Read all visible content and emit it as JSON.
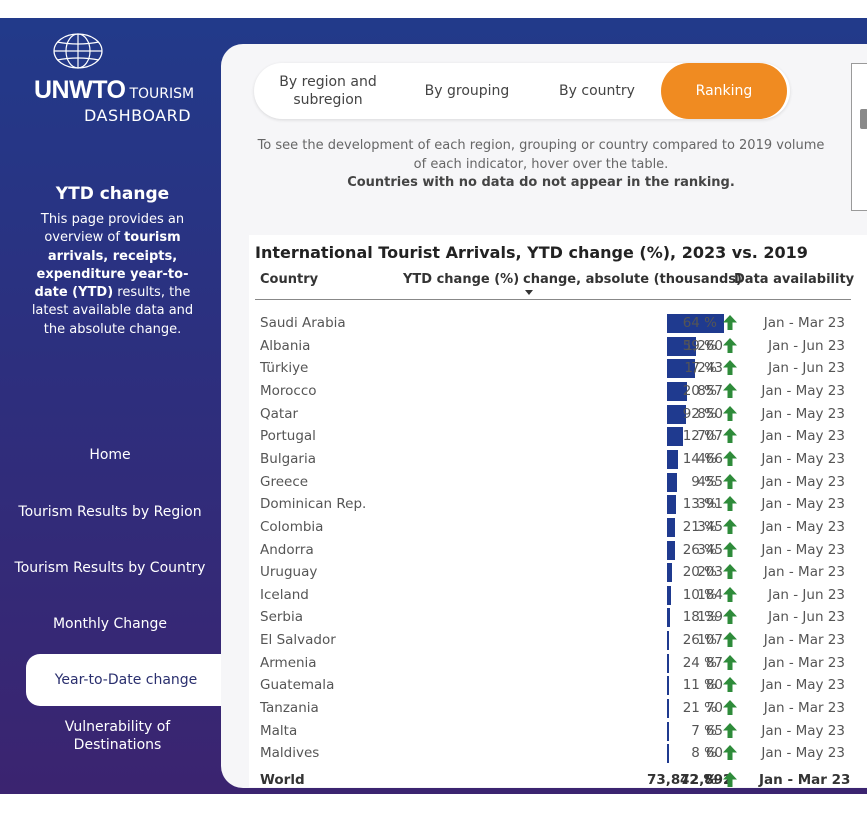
{
  "brand": {
    "logo_main": "UNWTO",
    "logo_sub": "TOURISM",
    "logo_dash": "DASHBOARD"
  },
  "sidebar": {
    "section_title": "YTD change",
    "description_parts": [
      "This page provides an overview of ",
      "tourism arrivals, receipts, expenditure year-to-date (YTD)",
      " results, the latest available data and the absolute change."
    ],
    "nav": [
      {
        "label": "Home"
      },
      {
        "label": "Tourism Results by Region"
      },
      {
        "label": "Tourism Results by Country"
      },
      {
        "label": "Monthly Change"
      },
      {
        "label": "Year-to-Date change",
        "active": true
      },
      {
        "label": "Vulnerability of Destinations"
      }
    ]
  },
  "tabs": [
    {
      "label": "By region and subregion"
    },
    {
      "label": "By grouping"
    },
    {
      "label": "By country"
    },
    {
      "label": "Ranking",
      "active": true
    }
  ],
  "info": {
    "line": "To see the development of each region, grouping or country compared to 2019 volume of each indicator, hover over the table.",
    "bold_line": "Countries with no data do not appear in the ranking."
  },
  "table": {
    "title": "International Tourist Arrivals, YTD change (%), 2023 vs. 2019",
    "headers": {
      "country": "Country",
      "ytd": "YTD change (%)",
      "abs": "change, absolute (thousands)",
      "avail": "Data availability"
    },
    "rows": [
      {
        "country": "Saudi Arabia",
        "ytd": "64 %",
        "abs": "",
        "abs_value": 2500,
        "avail": "Jan - Mar 23"
      },
      {
        "country": "Albania",
        "ytd": "59 %",
        "abs": "1,260",
        "abs_value": 1260,
        "avail": "Jan - Jun 23"
      },
      {
        "country": "Türkiye",
        "ytd": "7 %",
        "abs": "1,243",
        "abs_value": 1243,
        "avail": "Jan - Jun 23"
      },
      {
        "country": "Morocco",
        "ytd": "20 %",
        "abs": "857",
        "abs_value": 857,
        "avail": "Jan - May 23"
      },
      {
        "country": "Qatar",
        "ytd": "92 %",
        "abs": "850",
        "abs_value": 850,
        "avail": "Jan - May 23"
      },
      {
        "country": "Portugal",
        "ytd": "12 %",
        "abs": "707",
        "abs_value": 707,
        "avail": "Jan - May 23"
      },
      {
        "country": "Bulgaria",
        "ytd": "14 %",
        "abs": "466",
        "abs_value": 466,
        "avail": "Jan - May 23"
      },
      {
        "country": "Greece",
        "ytd": "9 %",
        "abs": "455",
        "abs_value": 455,
        "avail": "Jan - May 23"
      },
      {
        "country": "Dominican Rep.",
        "ytd": "13 %",
        "abs": "391",
        "abs_value": 391,
        "avail": "Jan - May 23"
      },
      {
        "country": "Colombia",
        "ytd": "21 %",
        "abs": "345",
        "abs_value": 345,
        "avail": "Jan - May 23"
      },
      {
        "country": "Andorra",
        "ytd": "26 %",
        "abs": "345",
        "abs_value": 345,
        "avail": "Jan - May 23"
      },
      {
        "country": "Uruguay",
        "ytd": "20 %",
        "abs": "203",
        "abs_value": 203,
        "avail": "Jan - Mar 23"
      },
      {
        "country": "Iceland",
        "ytd": "10 %",
        "abs": "184",
        "abs_value": 184,
        "avail": "Jan - Jun 23"
      },
      {
        "country": "Serbia",
        "ytd": "18 %",
        "abs": "139",
        "abs_value": 139,
        "avail": "Jan - Jun 23"
      },
      {
        "country": "El Salvador",
        "ytd": "26 %",
        "abs": "107",
        "abs_value": 107,
        "avail": "Jan - Mar 23"
      },
      {
        "country": "Armenia",
        "ytd": "24 %",
        "abs": "87",
        "abs_value": 87,
        "avail": "Jan - Mar 23"
      },
      {
        "country": "Guatemala",
        "ytd": "11 %",
        "abs": "80",
        "abs_value": 80,
        "avail": "Jan - May 23"
      },
      {
        "country": "Tanzania",
        "ytd": "21 %",
        "abs": "70",
        "abs_value": 70,
        "avail": "Jan - Mar 23"
      },
      {
        "country": "Malta",
        "ytd": "7 %",
        "abs": "65",
        "abs_value": 65,
        "avail": "Jan - May 23"
      },
      {
        "country": "Maldives",
        "ytd": "8 %",
        "abs": "60",
        "abs_value": 60,
        "avail": "Jan - May 23"
      }
    ],
    "total": {
      "country": "World",
      "ytd": "42 %",
      "abs": "73,872,892",
      "avail": "Jan - Mar 23"
    }
  },
  "colors": {
    "accent": "#f08b21",
    "bar": "#1f3a8f",
    "up_arrow": "#2e8b3a",
    "sidebar_top": "#223a8a",
    "sidebar_bottom": "#3b2470"
  }
}
